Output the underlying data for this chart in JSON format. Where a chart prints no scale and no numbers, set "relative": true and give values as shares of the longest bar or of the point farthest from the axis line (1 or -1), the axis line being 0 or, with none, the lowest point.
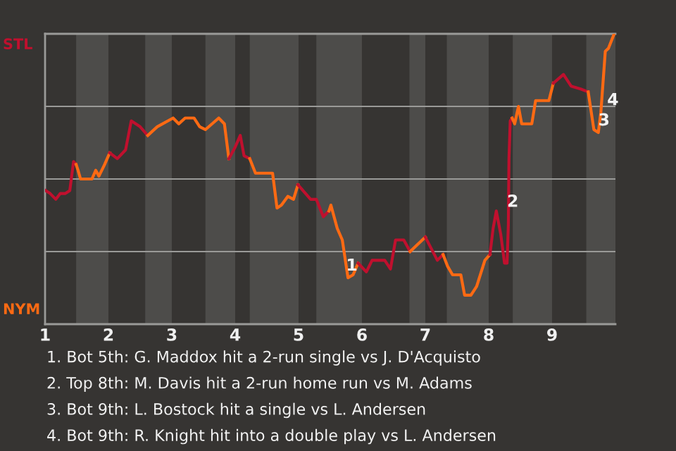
{
  "chart_data": {
    "type": "line",
    "relative": true,
    "xlim": [
      1,
      10
    ],
    "xticks": [
      1,
      2,
      3,
      4,
      5,
      6,
      7,
      8,
      9
    ],
    "grid": "y",
    "legend": false,
    "line_style": "solid",
    "bands": [
      {
        "axis": "x",
        "from": 1.49,
        "to": 2.0,
        "color": "#4d4c4a"
      },
      {
        "axis": "x",
        "from": 2.58,
        "to": 3.0,
        "color": "#4d4c4a"
      },
      {
        "axis": "x",
        "from": 3.53,
        "to": 4.0,
        "color": "#4d4c4a"
      },
      {
        "axis": "x",
        "from": 4.23,
        "to": 5.0,
        "color": "#4d4c4a"
      },
      {
        "axis": "x",
        "from": 5.28,
        "to": 6.0,
        "color": "#4d4c4a"
      },
      {
        "axis": "x",
        "from": 6.75,
        "to": 7.0,
        "color": "#4d4c4a"
      },
      {
        "axis": "x",
        "from": 7.34,
        "to": 8.0,
        "color": "#4d4c4a"
      },
      {
        "axis": "x",
        "from": 8.38,
        "to": 9.0,
        "color": "#4d4c4a"
      },
      {
        "axis": "x",
        "from": 9.54,
        "to": 10.0,
        "color": "#4d4c4a"
      }
    ],
    "series": [
      {
        "color": "#c0102e",
        "x": [
          1.01,
          1.08,
          1.17,
          1.24,
          1.32,
          1.39,
          1.45,
          1.49
        ],
        "values": [
          0.46,
          0.45,
          0.43,
          0.45,
          0.45,
          0.46,
          0.56,
          0.55
        ]
      },
      {
        "color": "#ff6a13",
        "x": [
          1.49,
          1.52,
          1.56,
          1.74,
          1.8,
          1.85,
          1.94,
          2.02
        ],
        "values": [
          0.55,
          0.53,
          0.5,
          0.5,
          0.53,
          0.51,
          0.55,
          0.59
        ]
      },
      {
        "color": "#c0102e",
        "x": [
          2.02,
          2.14,
          2.27,
          2.36,
          2.5,
          2.62
        ],
        "values": [
          0.59,
          0.57,
          0.6,
          0.7,
          0.68,
          0.65
        ]
      },
      {
        "color": "#ff6a13",
        "x": [
          2.62,
          2.77,
          3.02,
          3.11,
          3.21,
          3.35,
          3.44,
          3.53,
          3.74,
          3.83,
          3.9
        ],
        "values": [
          0.65,
          0.68,
          0.71,
          0.69,
          0.71,
          0.71,
          0.68,
          0.67,
          0.71,
          0.69,
          0.57
        ]
      },
      {
        "color": "#c0102e",
        "x": [
          3.9,
          4.0,
          4.08,
          4.14,
          4.23
        ],
        "values": [
          0.57,
          0.61,
          0.65,
          0.58,
          0.57
        ]
      },
      {
        "color": "#ff6a13",
        "x": [
          4.23,
          4.32,
          4.59,
          4.66,
          4.73,
          4.83,
          4.92,
          4.99
        ],
        "values": [
          0.57,
          0.52,
          0.52,
          0.4,
          0.41,
          0.44,
          0.43,
          0.48
        ]
      },
      {
        "color": "#c0102e",
        "x": [
          4.99,
          5.19,
          5.28,
          5.39,
          5.48
        ],
        "values": [
          0.48,
          0.43,
          0.43,
          0.37,
          0.39
        ]
      },
      {
        "color": "#ff6a13",
        "x": [
          5.48,
          5.51,
          5.61,
          5.69,
          5.78,
          5.86,
          5.94
        ],
        "values": [
          0.39,
          0.41,
          0.33,
          0.29,
          0.16,
          0.17,
          0.21
        ]
      },
      {
        "color": "#c0102e",
        "x": [
          5.94,
          6.07,
          6.16,
          6.36,
          6.45,
          6.53,
          6.66,
          6.76
        ],
        "values": [
          0.21,
          0.18,
          0.22,
          0.22,
          0.19,
          0.29,
          0.29,
          0.25
        ]
      },
      {
        "color": "#ff6a13",
        "x": [
          6.76,
          7.0
        ],
        "values": [
          0.25,
          0.3
        ]
      },
      {
        "color": "#c0102e",
        "x": [
          7.0,
          7.19,
          7.28
        ],
        "values": [
          0.3,
          0.22,
          0.24
        ]
      },
      {
        "color": "#ff6a13",
        "x": [
          7.28,
          7.35,
          7.43,
          7.56,
          7.62,
          7.72,
          7.81,
          7.94,
          8.02
        ],
        "values": [
          0.24,
          0.2,
          0.17,
          0.17,
          0.1,
          0.1,
          0.13,
          0.22,
          0.24
        ]
      },
      {
        "color": "#c0102e",
        "x": [
          8.02,
          8.07,
          8.12,
          8.19,
          8.25,
          8.29,
          8.31,
          8.32,
          8.34,
          8.37
        ],
        "values": [
          0.24,
          0.33,
          0.39,
          0.31,
          0.21,
          0.21,
          0.34,
          0.57,
          0.7,
          0.71
        ]
      },
      {
        "color": "#ff6a13",
        "x": [
          8.37,
          8.41,
          8.47,
          8.52,
          8.68,
          8.74,
          8.95,
          9.02
        ],
        "values": [
          0.71,
          0.69,
          0.75,
          0.69,
          0.69,
          0.77,
          0.77,
          0.83
        ]
      },
      {
        "color": "#c0102e",
        "x": [
          9.02,
          9.18,
          9.3,
          9.45,
          9.57
        ],
        "values": [
          0.83,
          0.86,
          0.82,
          0.81,
          0.8
        ]
      },
      {
        "color": "#ff6a13",
        "x": [
          9.57,
          9.66,
          9.73,
          9.77,
          9.84,
          9.89,
          9.98
        ],
        "values": [
          0.8,
          0.67,
          0.66,
          0.73,
          0.94,
          0.95,
          1.0
        ]
      }
    ],
    "annotations": [
      "STL",
      "NYM",
      {
        "text": "1",
        "x": 5.84,
        "y": 0.2
      },
      {
        "text": "2",
        "x": 8.38,
        "y": 0.42
      },
      {
        "text": "3",
        "x": 9.82,
        "y": 0.7
      },
      {
        "text": "4",
        "x": 9.96,
        "y": 0.77
      },
      "1. Bot 5th: G. Maddox hit a 2-run single vs J. D'Acquisto",
      "2. Top 8th: M. Davis hit a 2-run home run vs M. Adams",
      "3. Bot 9th: L. Bostock hit a single vs L. Andersen",
      "4. Bot 9th: R. Knight hit into a double play vs L. Andersen"
    ]
  }
}
